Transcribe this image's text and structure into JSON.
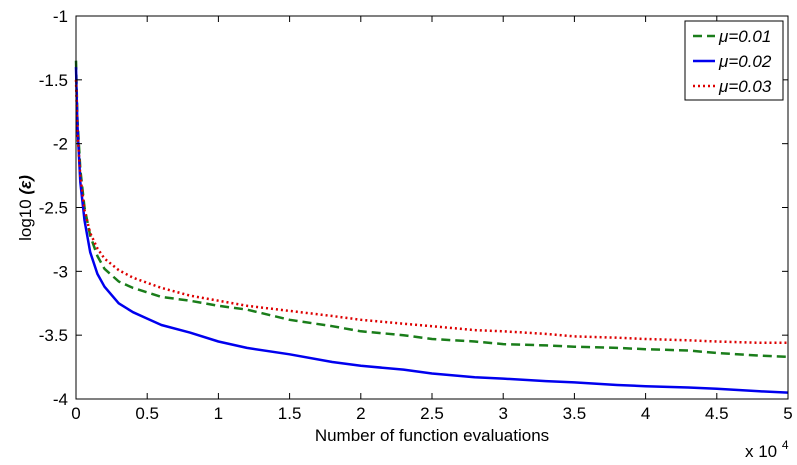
{
  "chart_data": {
    "type": "line",
    "xlabel": "Number of function evaluations",
    "ylabel": "log10",
    "ylabel_symbol": "(ε)",
    "x_multiplier_label": "x 10",
    "x_multiplier_exponent": "4",
    "xlim": [
      0,
      5
    ],
    "ylim": [
      -4,
      -1
    ],
    "xticks": [
      0,
      0.5,
      1,
      1.5,
      2,
      2.5,
      3,
      3.5,
      4,
      4.5,
      5
    ],
    "xtick_labels": [
      "0",
      "0.5",
      "1",
      "1.5",
      "2",
      "2.5",
      "3",
      "3.5",
      "4",
      "4.5",
      "5"
    ],
    "yticks": [
      -4,
      -3.5,
      -3,
      -2.5,
      -2,
      -1.5,
      -1
    ],
    "ytick_labels": [
      "-4",
      "-3.5",
      "-3",
      "-2.5",
      "-2",
      "-1.5",
      "-1"
    ],
    "grid": false,
    "legend_position": "top-right",
    "series": [
      {
        "name": "μ=0.01",
        "color": "#1a7d1a",
        "style": "dashed",
        "points": [
          [
            0,
            -1.35
          ],
          [
            0.01,
            -1.8
          ],
          [
            0.03,
            -2.2
          ],
          [
            0.06,
            -2.5
          ],
          [
            0.1,
            -2.72
          ],
          [
            0.15,
            -2.88
          ],
          [
            0.2,
            -2.98
          ],
          [
            0.3,
            -3.08
          ],
          [
            0.4,
            -3.13
          ],
          [
            0.6,
            -3.2
          ],
          [
            0.8,
            -3.23
          ],
          [
            1.0,
            -3.27
          ],
          [
            1.2,
            -3.3
          ],
          [
            1.5,
            -3.38
          ],
          [
            1.8,
            -3.43
          ],
          [
            2.0,
            -3.47
          ],
          [
            2.3,
            -3.5
          ],
          [
            2.5,
            -3.53
          ],
          [
            2.8,
            -3.55
          ],
          [
            3.0,
            -3.57
          ],
          [
            3.3,
            -3.58
          ],
          [
            3.5,
            -3.59
          ],
          [
            3.8,
            -3.6
          ],
          [
            4.0,
            -3.61
          ],
          [
            4.3,
            -3.62
          ],
          [
            4.5,
            -3.64
          ],
          [
            4.8,
            -3.66
          ],
          [
            5.0,
            -3.67
          ]
        ]
      },
      {
        "name": "μ=0.02",
        "color": "#0000ee",
        "style": "solid",
        "points": [
          [
            0,
            -1.4
          ],
          [
            0.01,
            -1.85
          ],
          [
            0.03,
            -2.3
          ],
          [
            0.06,
            -2.6
          ],
          [
            0.1,
            -2.85
          ],
          [
            0.15,
            -3.02
          ],
          [
            0.2,
            -3.12
          ],
          [
            0.3,
            -3.25
          ],
          [
            0.4,
            -3.32
          ],
          [
            0.5,
            -3.37
          ],
          [
            0.6,
            -3.42
          ],
          [
            0.8,
            -3.48
          ],
          [
            1.0,
            -3.55
          ],
          [
            1.2,
            -3.6
          ],
          [
            1.5,
            -3.65
          ],
          [
            1.8,
            -3.71
          ],
          [
            2.0,
            -3.74
          ],
          [
            2.3,
            -3.77
          ],
          [
            2.5,
            -3.8
          ],
          [
            2.8,
            -3.83
          ],
          [
            3.0,
            -3.84
          ],
          [
            3.3,
            -3.86
          ],
          [
            3.5,
            -3.87
          ],
          [
            3.8,
            -3.89
          ],
          [
            4.0,
            -3.9
          ],
          [
            4.3,
            -3.91
          ],
          [
            4.5,
            -3.92
          ],
          [
            4.8,
            -3.94
          ],
          [
            5.0,
            -3.95
          ]
        ]
      },
      {
        "name": "μ=0.03",
        "color": "#dd0000",
        "style": "dotted",
        "points": [
          [
            0,
            -1.5
          ],
          [
            0.01,
            -1.9
          ],
          [
            0.03,
            -2.25
          ],
          [
            0.06,
            -2.52
          ],
          [
            0.1,
            -2.7
          ],
          [
            0.15,
            -2.82
          ],
          [
            0.2,
            -2.9
          ],
          [
            0.3,
            -2.99
          ],
          [
            0.4,
            -3.05
          ],
          [
            0.6,
            -3.13
          ],
          [
            0.8,
            -3.19
          ],
          [
            1.0,
            -3.23
          ],
          [
            1.2,
            -3.27
          ],
          [
            1.5,
            -3.31
          ],
          [
            1.8,
            -3.35
          ],
          [
            2.0,
            -3.38
          ],
          [
            2.3,
            -3.41
          ],
          [
            2.5,
            -3.43
          ],
          [
            2.8,
            -3.46
          ],
          [
            3.0,
            -3.47
          ],
          [
            3.3,
            -3.49
          ],
          [
            3.5,
            -3.51
          ],
          [
            3.8,
            -3.52
          ],
          [
            4.0,
            -3.53
          ],
          [
            4.3,
            -3.54
          ],
          [
            4.5,
            -3.55
          ],
          [
            4.8,
            -3.56
          ],
          [
            5.0,
            -3.56
          ]
        ]
      }
    ]
  }
}
